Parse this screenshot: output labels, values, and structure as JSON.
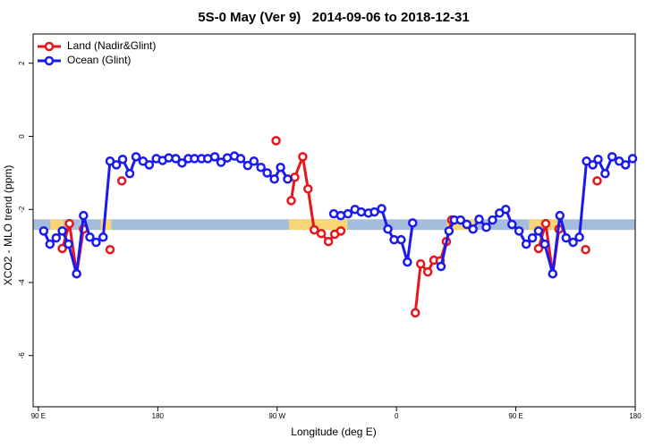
{
  "chart_data": {
    "type": "line",
    "title": "5S-0 May (Ver 9)   2014-09-06 to 2018-12-31",
    "xlabel": "Longitude (deg E)",
    "ylabel": "XCO2 - MLO trend (ppm)",
    "xlim": [
      86,
      540
    ],
    "ylim": [
      -7.4,
      2.8
    ],
    "xticks": [
      {
        "value": 90,
        "label": "90 E"
      },
      {
        "value": 180,
        "label": "180"
      },
      {
        "value": 270,
        "label": "90 W"
      },
      {
        "value": 360,
        "label": "0"
      },
      {
        "value": 450,
        "label": "90 E"
      },
      {
        "value": 540,
        "label": "180"
      }
    ],
    "yticks": [
      -6,
      -4,
      -2,
      0,
      2
    ],
    "legend": "top-left",
    "band": {
      "ylim": [
        -2.56,
        -2.27
      ],
      "color": "#a5bddd",
      "land_color": "#f8d673",
      "land_x": [
        [
          99,
          109
        ],
        [
          137,
          145
        ],
        [
          279,
          323
        ],
        [
          398,
          421
        ],
        [
          460,
          483
        ]
      ]
    },
    "series": [
      {
        "name": "Land (Nadir&Glint)",
        "color": "#e8161b",
        "x": [
          108.0,
          113.4,
          118.8,
          124.0,
          null,
          144.0,
          null,
          152.9,
          null,
          269.2,
          null,
          280.6,
          283.3,
          289.3,
          293.3,
          298.0,
          303.3,
          308.7,
          313.4,
          318.0,
          null,
          374.2,
          378.2,
          383.6,
          388.2,
          392.9,
          397.6,
          401.6,
          null,
          467.1,
          472.5,
          477.8,
          482.5,
          null,
          502.6,
          null,
          511.3
        ],
        "values": [
          -3.07,
          -2.39,
          -3.76,
          -2.54,
          null,
          -3.1,
          null,
          -1.22,
          null,
          -0.12,
          null,
          -1.76,
          -1.12,
          -0.56,
          -1.44,
          -2.56,
          -2.66,
          -2.88,
          -2.68,
          -2.59,
          null,
          -4.83,
          -3.49,
          -3.71,
          -3.39,
          -3.41,
          -2.88,
          -2.29,
          null,
          -3.07,
          -2.39,
          -3.76,
          -2.54,
          null,
          -3.1,
          null,
          -1.22
        ]
      },
      {
        "name": "Ocean (Glint)",
        "color": "#1a1aef",
        "x": [
          94.0,
          98.7,
          103.4,
          108.0,
          112.7,
          118.8,
          124.0,
          128.8,
          133.5,
          138.8,
          144.0,
          148.8,
          153.5,
          158.9,
          163.6,
          168.9,
          173.6,
          178.9,
          183.6,
          188.3,
          193.6,
          198.3,
          203.0,
          207.7,
          213.0,
          217.7,
          223.0,
          227.7,
          232.4,
          237.8,
          242.5,
          247.8,
          252.5,
          257.8,
          262.5,
          267.9,
          272.6,
          277.9,
          null,
          312.7,
          318.0,
          323.4,
          328.7,
          333.4,
          338.8,
          343.4,
          348.8,
          353.5,
          358.2,
          363.5,
          368.2,
          372.2,
          null,
          393.6,
          399.6,
          403.6,
          408.3,
          413.0,
          417.7,
          422.3,
          427.7,
          432.4,
          437.7,
          442.4,
          447.1,
          452.4,
          457.8,
          462.5,
          467.1,
          471.8,
          477.8,
          483.2,
          487.9,
          493.2,
          497.9,
          503.3,
          508.0,
          512.0,
          517.3,
          522.6,
          528.0,
          532.7,
          538.0
        ],
        "values": [
          -2.59,
          -2.95,
          -2.78,
          -2.59,
          -2.95,
          -3.76,
          -2.17,
          -2.76,
          -2.9,
          -2.76,
          -0.68,
          -0.78,
          -0.63,
          -1.02,
          -0.56,
          -0.68,
          -0.78,
          -0.61,
          -0.66,
          -0.59,
          -0.61,
          -0.73,
          -0.61,
          -0.61,
          -0.61,
          -0.61,
          -0.56,
          -0.71,
          -0.59,
          -0.54,
          -0.61,
          -0.8,
          -0.68,
          -0.85,
          -1.0,
          -1.17,
          -0.85,
          -1.17,
          null,
          -2.12,
          -2.17,
          -2.12,
          -2.0,
          -2.07,
          -2.1,
          -2.07,
          -1.98,
          -2.54,
          -2.83,
          -2.83,
          -3.44,
          -2.37,
          null,
          -3.56,
          -2.59,
          -2.29,
          -2.29,
          -2.41,
          -2.54,
          -2.27,
          -2.49,
          -2.29,
          -2.1,
          -2.0,
          -2.41,
          -2.59,
          -2.95,
          -2.78,
          -2.59,
          -2.95,
          -3.76,
          -2.17,
          -2.78,
          -2.9,
          -2.76,
          -0.68,
          -0.78,
          -0.63,
          -1.02,
          -0.56,
          -0.68,
          -0.78,
          -0.61
        ]
      }
    ]
  }
}
